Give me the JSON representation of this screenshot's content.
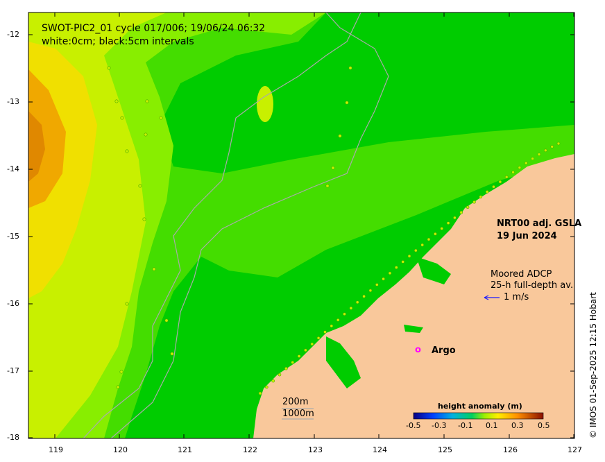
{
  "title": {
    "line1": "SWOT-PIC2_01 cycle 017/006; 19/06/24 06:32",
    "line2": "white:0cm; black:5cm intervals"
  },
  "product": {
    "name": "NRT00 adj. GSLA",
    "date": "19 Jun 2024"
  },
  "adcp": {
    "line1": "Moored ADCP",
    "line2": "25-h full-depth av.",
    "scale": "1 m/s",
    "arrow_color": "#1a1aff"
  },
  "argo": {
    "marker": "o",
    "label": "Argo",
    "color": "#ff00ff"
  },
  "isobaths": {
    "shallow": "200m",
    "deep": "1000m"
  },
  "credit": "© IMOS 01-Sep-2025 12:15 Hobart",
  "axes": {
    "x_ticks": [
      "119",
      "120",
      "121",
      "122",
      "123",
      "124",
      "125",
      "126",
      "127"
    ],
    "y_ticks": [
      "-12",
      "-13",
      "-14",
      "-15",
      "-16",
      "-17",
      "-18"
    ]
  },
  "colorbar": {
    "title": "height anomaly (m)",
    "ticks": [
      "-0.5",
      "-0.3",
      "-0.1",
      "0.1",
      "0.3",
      "0.5"
    ],
    "range": [
      -0.5,
      0.5
    ]
  },
  "colors": {
    "land": "#f9c89b",
    "sea_high": "#e8a000",
    "sea_mid": "#b8f000",
    "sea_low": "#00cc00",
    "track": "#aaaaaa"
  }
}
